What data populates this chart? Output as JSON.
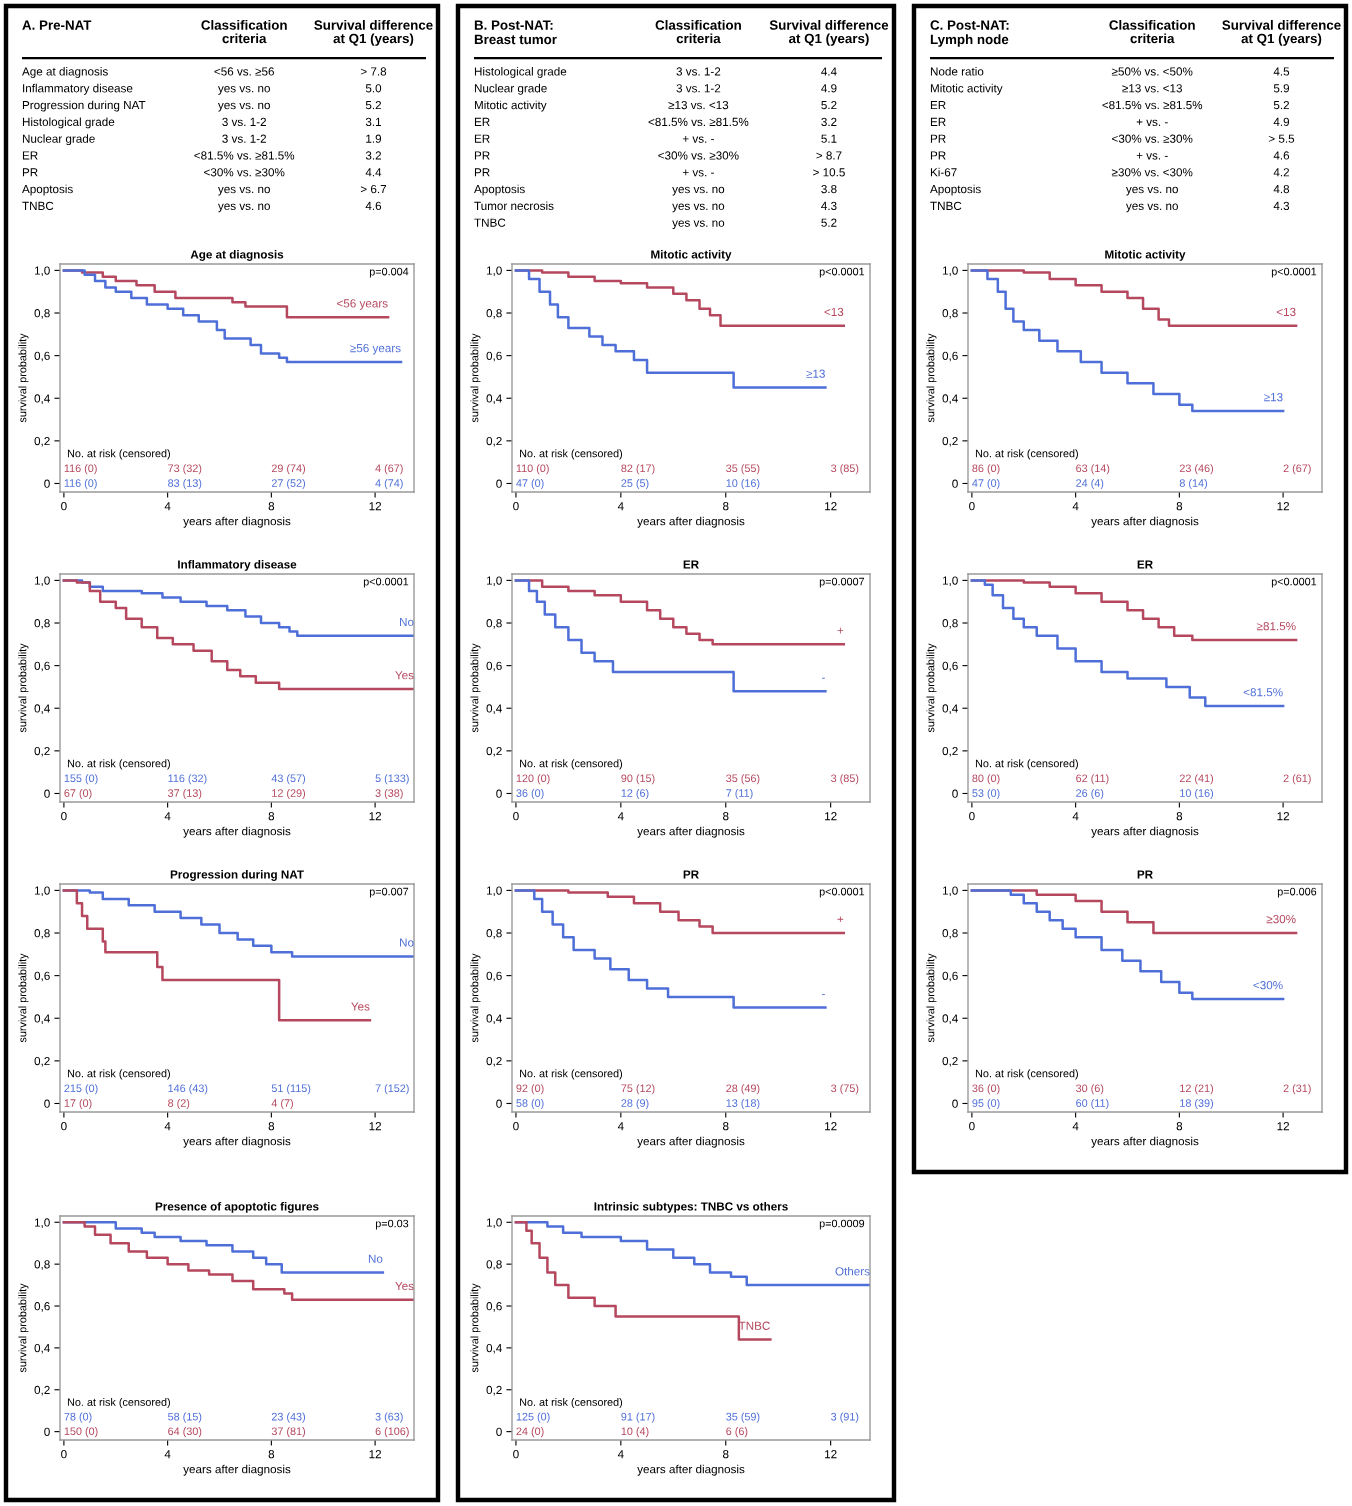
{
  "chart_data": [
    {
      "type": "other",
      "title": "A. Pre-NAT",
      "annotations": [
        "Classification\ncriteria",
        "Survival difference\nat Q1 (years)",
        "Age at diagnosis",
        "<56 vs. ≥56",
        "> 7.8",
        "Inflammatory disease",
        "yes vs. no",
        "5.0",
        "Progression during NAT",
        "yes vs. no",
        "5.2",
        "Histological grade",
        "3 vs. 1-2",
        "3.1",
        "Nuclear grade",
        "3 vs. 1-2",
        "1.9",
        "ER",
        "<81.5% vs. ≥81.5%",
        "3.2",
        "PR",
        "<30% vs. ≥30%",
        "4.4",
        "Apoptosis",
        "yes vs. no",
        "> 6.7",
        "TNBC",
        "yes vs. no",
        "4.6"
      ]
    },
    {
      "type": "step",
      "title": "Age at diagnosis",
      "xlabel": "years after diagnosis",
      "ylabel": "survival probability",
      "xlim": [
        -0.15,
        13.5
      ],
      "ylim": [
        -0.04,
        1.03
      ],
      "xticks": [
        0,
        4,
        8,
        12
      ],
      "yticks": [
        0,
        {
          "value": 0.2,
          "label": "0,2"
        },
        {
          "value": 0.4,
          "label": "0,4"
        },
        {
          "value": 0.6,
          "label": "0,6"
        },
        {
          "value": 0.8,
          "label": "0,8"
        },
        {
          "value": 1,
          "label": "1,0"
        }
      ],
      "series": [
        {
          "name": "<56 years",
          "color": "#b5485e",
          "x": [
            0,
            0.7,
            1.5,
            2,
            2.8,
            3.5,
            4.3,
            6.5,
            7,
            8.6,
            12.5
          ],
          "values": [
            1,
            0.99,
            0.97,
            0.95,
            0.93,
            0.9,
            0.87,
            0.85,
            0.83,
            0.78,
            0.78
          ]
        },
        {
          "name": "≥56 years",
          "color": "#4f6fd8",
          "x": [
            0,
            0.8,
            1.2,
            1.6,
            2,
            2.6,
            3.2,
            4,
            4.6,
            5.2,
            5.9,
            6.2,
            7.2,
            7.6,
            8.3,
            8.6,
            13
          ],
          "values": [
            1,
            0.98,
            0.95,
            0.92,
            0.9,
            0.87,
            0.84,
            0.82,
            0.79,
            0.76,
            0.72,
            0.68,
            0.65,
            0.61,
            0.59,
            0.57,
            0.57
          ]
        }
      ],
      "annotations": [
        "p=0.004",
        "No. at risk (censored)",
        "116 (0)",
        "73 (32)",
        "29 (74)",
        "4 (67)",
        "116 (0)",
        "83 (13)",
        "27 (52)",
        "4 (74)"
      ]
    },
    {
      "type": "step",
      "title": "Inflammatory disease",
      "xlabel": "years after diagnosis",
      "ylabel": "survival probability",
      "xlim": [
        -0.15,
        13.5
      ],
      "ylim": [
        -0.04,
        1.03
      ],
      "xticks": [
        0,
        4,
        8,
        12
      ],
      "yticks": [
        0,
        {
          "value": 0.2,
          "label": "0,2"
        },
        {
          "value": 0.4,
          "label": "0,4"
        },
        {
          "value": 0.6,
          "label": "0,6"
        },
        {
          "value": 0.8,
          "label": "0,8"
        },
        {
          "value": 1,
          "label": "1,0"
        }
      ],
      "series": [
        {
          "name": "No",
          "color": "#4f6fd8",
          "x": [
            0,
            0.7,
            1,
            1.5,
            3,
            3.8,
            4.5,
            5.5,
            6.3,
            7,
            7.6,
            8.3,
            8.7,
            9,
            13.5
          ],
          "values": [
            1,
            0.99,
            0.97,
            0.95,
            0.94,
            0.92,
            0.9,
            0.88,
            0.86,
            0.83,
            0.8,
            0.78,
            0.76,
            0.74,
            0.74
          ]
        },
        {
          "name": "Yes",
          "color": "#b5485e",
          "x": [
            0,
            0.5,
            1,
            1.4,
            2,
            2.4,
            3,
            3.6,
            4.2,
            5,
            5.7,
            6.3,
            6.8,
            7.4,
            8.3,
            13.5
          ],
          "values": [
            1,
            0.99,
            0.95,
            0.9,
            0.87,
            0.82,
            0.78,
            0.73,
            0.7,
            0.67,
            0.62,
            0.58,
            0.55,
            0.52,
            0.49,
            0.49
          ]
        }
      ],
      "annotations": [
        "p<0.0001",
        "No. at risk (censored)",
        "155 (0)",
        "116 (32)",
        "43 (57)",
        "5 (133)",
        "67 (0)",
        "37 (13)",
        "12 (29)",
        "3 (38)"
      ]
    },
    {
      "type": "step",
      "title": "Progression during NAT",
      "xlabel": "years after diagnosis",
      "ylabel": "survival probability",
      "xlim": [
        -0.15,
        13.5
      ],
      "ylim": [
        -0.04,
        1.03
      ],
      "xticks": [
        0,
        4,
        8,
        12
      ],
      "yticks": [
        0,
        {
          "value": 0.2,
          "label": "0,2"
        },
        {
          "value": 0.4,
          "label": "0,4"
        },
        {
          "value": 0.6,
          "label": "0,6"
        },
        {
          "value": 0.8,
          "label": "0,8"
        },
        {
          "value": 1,
          "label": "1,0"
        }
      ],
      "series": [
        {
          "name": "No",
          "color": "#4f6fd8",
          "x": [
            0,
            1,
            1.5,
            2.5,
            3.5,
            4.5,
            5.3,
            6,
            6.7,
            7.3,
            8,
            8.8,
            13.5
          ],
          "values": [
            1,
            0.99,
            0.96,
            0.93,
            0.9,
            0.87,
            0.84,
            0.8,
            0.77,
            0.74,
            0.71,
            0.69,
            0.69
          ]
        },
        {
          "name": "Yes",
          "color": "#b5485e",
          "x": [
            0,
            0.5,
            0.7,
            0.9,
            1.5,
            1.6,
            3.6,
            3.8,
            8.3,
            11.8
          ],
          "values": [
            1,
            0.94,
            0.88,
            0.82,
            0.76,
            0.71,
            0.64,
            0.58,
            0.39,
            0.39
          ]
        }
      ],
      "annotations": [
        "p=0.007",
        "No. at risk (censored)",
        "215 (0)",
        "146 (43)",
        "51 (115)",
        "7 (152)",
        "17 (0)",
        "8 (2)",
        "4 (7)"
      ]
    },
    {
      "type": "step",
      "title": "Presence of apoptotic figures",
      "xlabel": "years after diagnosis",
      "ylabel": "survival probability",
      "xlim": [
        -0.15,
        13.5
      ],
      "ylim": [
        -0.04,
        1.03
      ],
      "xticks": [
        0,
        4,
        8,
        12
      ],
      "yticks": [
        0,
        {
          "value": 0.2,
          "label": "0,2"
        },
        {
          "value": 0.4,
          "label": "0,4"
        },
        {
          "value": 0.6,
          "label": "0,6"
        },
        {
          "value": 0.8,
          "label": "0,8"
        },
        {
          "value": 1,
          "label": "1,0"
        }
      ],
      "series": [
        {
          "name": "No",
          "color": "#4f6fd8",
          "x": [
            0,
            1.5,
            2,
            3,
            3.5,
            4.5,
            5.5,
            6.5,
            7.3,
            7.8,
            8.4,
            12.3
          ],
          "values": [
            1,
            1,
            0.97,
            0.95,
            0.93,
            0.91,
            0.89,
            0.86,
            0.83,
            0.8,
            0.76,
            0.76
          ]
        },
        {
          "name": "Yes",
          "color": "#b5485e",
          "x": [
            0,
            0.8,
            1.2,
            1.8,
            2.5,
            3.2,
            4,
            4.8,
            5.6,
            6.5,
            7.3,
            8.5,
            8.8,
            13.5
          ],
          "values": [
            1,
            0.98,
            0.94,
            0.9,
            0.86,
            0.83,
            0.8,
            0.77,
            0.75,
            0.72,
            0.68,
            0.66,
            0.63,
            0.63
          ]
        }
      ],
      "annotations": [
        "p=0.03",
        "No. at risk (censored)",
        "78 (0)",
        "58 (15)",
        "23 (43)",
        "3 (63)",
        "150 (0)",
        "64 (30)",
        "37 (81)",
        "6 (106)"
      ]
    },
    {
      "type": "other",
      "title": "B. Post-NAT:\nBreast tumor",
      "annotations": [
        "Classification\ncriteria",
        "Survival difference\nat Q1 (years)",
        "Histological grade",
        "3 vs. 1-2",
        "4.4",
        "Nuclear grade",
        "3 vs. 1-2",
        "4.9",
        "Mitotic activity",
        "≥13 vs. <13",
        "5.2",
        "ER",
        "<81.5% vs. ≥81.5%",
        "3.2",
        "ER",
        "+ vs. -",
        "5.1",
        "PR",
        "<30% vs. ≥30%",
        "> 8.7",
        "PR",
        "+ vs. -",
        "> 10.5",
        "Apoptosis",
        "yes vs. no",
        "3.8",
        "Tumor necrosis",
        "yes vs. no",
        "4.3",
        "TNBC",
        "yes vs. no",
        "5.2"
      ]
    },
    {
      "type": "step",
      "title": "Mitotic activity",
      "xlabel": "years after diagnosis",
      "ylabel": "survival probability",
      "xlim": [
        -0.15,
        13.5
      ],
      "ylim": [
        -0.04,
        1.03
      ],
      "xticks": [
        0,
        4,
        8,
        12
      ],
      "yticks": [
        0,
        {
          "value": 0.2,
          "label": "0,2"
        },
        {
          "value": 0.4,
          "label": "0,4"
        },
        {
          "value": 0.6,
          "label": "0,6"
        },
        {
          "value": 0.8,
          "label": "0,8"
        },
        {
          "value": 1,
          "label": "1,0"
        }
      ],
      "series": [
        {
          "name": "<13",
          "color": "#b5485e",
          "x": [
            0,
            1,
            2,
            3,
            4,
            5,
            6,
            6.5,
            7,
            7.4,
            7.8,
            12.5
          ],
          "values": [
            1,
            0.99,
            0.97,
            0.95,
            0.94,
            0.92,
            0.89,
            0.86,
            0.82,
            0.79,
            0.74,
            0.74
          ]
        },
        {
          "name": "≥13",
          "color": "#4f6fd8",
          "x": [
            0,
            0.5,
            0.9,
            1.3,
            1.6,
            2,
            2.8,
            3.3,
            3.8,
            4.5,
            5,
            8.3,
            11.8
          ],
          "values": [
            1,
            0.96,
            0.9,
            0.84,
            0.78,
            0.73,
            0.69,
            0.65,
            0.62,
            0.58,
            0.52,
            0.45,
            0.45
          ]
        }
      ],
      "annotations": [
        "p<0.0001",
        "No. at risk (censored)",
        "110 (0)",
        "82 (17)",
        "35 (55)",
        "3 (85)",
        "47 (0)",
        "25 (5)",
        "10 (16)"
      ]
    },
    {
      "type": "step",
      "title": "ER",
      "xlabel": "years after diagnosis",
      "ylabel": "survival probability",
      "xlim": [
        -0.15,
        13.5
      ],
      "ylim": [
        -0.04,
        1.03
      ],
      "xticks": [
        0,
        4,
        8,
        12
      ],
      "yticks": [
        0,
        {
          "value": 0.2,
          "label": "0,2"
        },
        {
          "value": 0.4,
          "label": "0,4"
        },
        {
          "value": 0.6,
          "label": "0,6"
        },
        {
          "value": 0.8,
          "label": "0,8"
        },
        {
          "value": 1,
          "label": "1,0"
        }
      ],
      "series": [
        {
          "name": "+",
          "color": "#b5485e",
          "x": [
            0,
            1,
            2,
            3,
            4,
            5,
            5.5,
            6,
            6.5,
            7,
            7.5,
            12.5
          ],
          "values": [
            1,
            0.97,
            0.95,
            0.93,
            0.9,
            0.86,
            0.82,
            0.78,
            0.75,
            0.72,
            0.7,
            0.7
          ]
        },
        {
          "name": "-",
          "color": "#4f6fd8",
          "x": [
            0,
            0.5,
            0.8,
            1.1,
            1.5,
            2,
            2.5,
            3,
            3.7,
            8.3,
            11.8
          ],
          "values": [
            1,
            0.95,
            0.9,
            0.84,
            0.78,
            0.72,
            0.66,
            0.62,
            0.57,
            0.48,
            0.48
          ]
        }
      ],
      "annotations": [
        "p=0.0007",
        "No. at risk (censored)",
        "120 (0)",
        "90 (15)",
        "35 (56)",
        "3 (85)",
        "36 (0)",
        "12 (6)",
        "7 (11)"
      ]
    },
    {
      "type": "step",
      "title": "PR",
      "xlabel": "years after diagnosis",
      "ylabel": "survival probability",
      "xlim": [
        -0.15,
        13.5
      ],
      "ylim": [
        -0.04,
        1.03
      ],
      "xticks": [
        0,
        4,
        8,
        12
      ],
      "yticks": [
        0,
        {
          "value": 0.2,
          "label": "0,2"
        },
        {
          "value": 0.4,
          "label": "0,4"
        },
        {
          "value": 0.6,
          "label": "0,6"
        },
        {
          "value": 0.8,
          "label": "0,8"
        },
        {
          "value": 1,
          "label": "1,0"
        }
      ],
      "series": [
        {
          "name": "+",
          "color": "#b5485e",
          "x": [
            0,
            2,
            3.5,
            4.5,
            5.5,
            6.2,
            7,
            7.5,
            12.5
          ],
          "values": [
            1,
            0.99,
            0.97,
            0.94,
            0.9,
            0.86,
            0.83,
            0.8,
            0.8
          ]
        },
        {
          "name": "-",
          "color": "#4f6fd8",
          "x": [
            0,
            0.7,
            1,
            1.4,
            1.8,
            2.2,
            3,
            3.6,
            4.3,
            5,
            5.8,
            8.3,
            11.8
          ],
          "values": [
            1,
            0.96,
            0.9,
            0.84,
            0.78,
            0.72,
            0.68,
            0.63,
            0.58,
            0.54,
            0.5,
            0.45,
            0.45
          ]
        }
      ],
      "annotations": [
        "p<0.0001",
        "No. at risk (censored)",
        "92 (0)",
        "75 (12)",
        "28 (49)",
        "3 (75)",
        "58 (0)",
        "28 (9)",
        "13 (18)"
      ]
    },
    {
      "type": "step",
      "title": "Intrinsic subtypes: TNBC vs others",
      "xlabel": "years after diagnosis",
      "ylabel": "survival probability",
      "xlim": [
        -0.15,
        13.5
      ],
      "ylim": [
        -0.04,
        1.03
      ],
      "xticks": [
        0,
        4,
        8,
        12
      ],
      "yticks": [
        0,
        {
          "value": 0.2,
          "label": "0,2"
        },
        {
          "value": 0.4,
          "label": "0,4"
        },
        {
          "value": 0.6,
          "label": "0,6"
        },
        {
          "value": 0.8,
          "label": "0,8"
        },
        {
          "value": 1,
          "label": "1,0"
        }
      ],
      "series": [
        {
          "name": "Others",
          "color": "#4f6fd8",
          "x": [
            0,
            1.2,
            1.8,
            2.5,
            4,
            5,
            6,
            6.8,
            7.4,
            8.2,
            8.8,
            13.5
          ],
          "values": [
            1,
            0.98,
            0.95,
            0.93,
            0.91,
            0.87,
            0.83,
            0.8,
            0.76,
            0.74,
            0.7,
            0.7
          ]
        },
        {
          "name": "TNBC",
          "color": "#b5485e",
          "x": [
            0,
            0.4,
            0.6,
            0.9,
            1.2,
            1.5,
            2,
            3,
            3.8,
            8.5,
            9.7
          ],
          "values": [
            1,
            0.96,
            0.9,
            0.83,
            0.76,
            0.7,
            0.64,
            0.6,
            0.55,
            0.44,
            0.44
          ]
        }
      ],
      "annotations": [
        "p=0.0009",
        "No. at risk (censored)",
        "125 (0)",
        "91 (17)",
        "35 (59)",
        "3 (91)",
        "24 (0)",
        "10 (4)",
        "6 (6)"
      ]
    },
    {
      "type": "other",
      "title": "C. Post-NAT:\nLymph node",
      "annotations": [
        "Classification\ncriteria",
        "Survival difference\nat Q1 (years)",
        "Node ratio",
        "≥50% vs. <50%",
        "4.5",
        "Mitotic activity",
        "≥13 vs. <13",
        "5.9",
        "ER",
        "<81.5% vs. ≥81.5%",
        "5.2",
        "ER",
        "+ vs. -",
        "4.9",
        "PR",
        "<30% vs. ≥30%",
        "> 5.5",
        "PR",
        "+ vs. -",
        "4.6",
        "Ki-67",
        "≥30% vs. <30%",
        "4.2",
        "Apoptosis",
        "yes vs. no",
        "4.8",
        "TNBC",
        "yes vs. no",
        "4.3"
      ]
    },
    {
      "type": "step",
      "title": "Mitotic activity",
      "xlabel": "years after diagnosis",
      "ylabel": "survival probability",
      "xlim": [
        -0.15,
        13.5
      ],
      "ylim": [
        -0.04,
        1.03
      ],
      "xticks": [
        0,
        4,
        8,
        12
      ],
      "yticks": [
        0,
        {
          "value": 0.2,
          "label": "0,2"
        },
        {
          "value": 0.4,
          "label": "0,4"
        },
        {
          "value": 0.6,
          "label": "0,6"
        },
        {
          "value": 0.8,
          "label": "0,8"
        },
        {
          "value": 1,
          "label": "1,0"
        }
      ],
      "series": [
        {
          "name": "<13",
          "color": "#b5485e",
          "x": [
            0,
            2,
            3,
            4,
            5,
            6,
            6.6,
            7.2,
            7.6,
            12.5
          ],
          "values": [
            1,
            0.99,
            0.96,
            0.93,
            0.9,
            0.87,
            0.82,
            0.77,
            0.74,
            0.74
          ]
        },
        {
          "name": "≥13",
          "color": "#4f6fd8",
          "x": [
            0,
            0.6,
            1,
            1.3,
            1.6,
            2,
            2.6,
            3.3,
            4.2,
            5,
            6,
            7,
            8,
            8.5,
            12
          ],
          "values": [
            1,
            0.96,
            0.9,
            0.82,
            0.76,
            0.72,
            0.67,
            0.62,
            0.57,
            0.52,
            0.47,
            0.42,
            0.37,
            0.34,
            0.34
          ]
        }
      ],
      "annotations": [
        "p<0.0001",
        "No. at risk (censored)",
        "86 (0)",
        "63 (14)",
        "23 (46)",
        "2 (67)",
        "47 (0)",
        "24 (4)",
        "8 (14)"
      ]
    },
    {
      "type": "step",
      "title": "ER",
      "xlabel": "years after diagnosis",
      "ylabel": "survival probability",
      "xlim": [
        -0.15,
        13.5
      ],
      "ylim": [
        -0.04,
        1.03
      ],
      "xticks": [
        0,
        4,
        8,
        12
      ],
      "yticks": [
        0,
        {
          "value": 0.2,
          "label": "0,2"
        },
        {
          "value": 0.4,
          "label": "0,4"
        },
        {
          "value": 0.6,
          "label": "0,6"
        },
        {
          "value": 0.8,
          "label": "0,8"
        },
        {
          "value": 1,
          "label": "1,0"
        }
      ],
      "series": [
        {
          "name": "≥81.5%",
          "color": "#b5485e",
          "x": [
            0,
            2,
            3,
            4,
            5,
            6,
            6.6,
            7.2,
            7.8,
            8.5,
            12.5
          ],
          "values": [
            1,
            0.99,
            0.97,
            0.94,
            0.9,
            0.86,
            0.82,
            0.78,
            0.74,
            0.72,
            0.72
          ]
        },
        {
          "name": "<81.5%",
          "color": "#4f6fd8",
          "x": [
            0,
            0.5,
            0.8,
            1.2,
            1.6,
            2,
            2.5,
            3.3,
            4,
            5,
            6,
            7.5,
            8.4,
            9,
            12
          ],
          "values": [
            1,
            0.98,
            0.93,
            0.87,
            0.82,
            0.78,
            0.74,
            0.68,
            0.62,
            0.57,
            0.54,
            0.5,
            0.45,
            0.41,
            0.41
          ]
        }
      ],
      "annotations": [
        "p<0.0001",
        "No. at risk (censored)",
        "80 (0)",
        "62 (11)",
        "22 (41)",
        "2 (61)",
        "53 (0)",
        "26 (6)",
        "10 (16)"
      ]
    },
    {
      "type": "step",
      "title": "PR",
      "xlabel": "years after diagnosis",
      "ylabel": "survival probability",
      "xlim": [
        -0.15,
        13.5
      ],
      "ylim": [
        -0.04,
        1.03
      ],
      "xticks": [
        0,
        4,
        8,
        12
      ],
      "yticks": [
        0,
        {
          "value": 0.2,
          "label": "0,2"
        },
        {
          "value": 0.4,
          "label": "0,4"
        },
        {
          "value": 0.6,
          "label": "0,6"
        },
        {
          "value": 0.8,
          "label": "0,8"
        },
        {
          "value": 1,
          "label": "1,0"
        }
      ],
      "series": [
        {
          "name": "≥30%",
          "color": "#b5485e",
          "x": [
            0,
            2.5,
            4,
            5,
            6,
            7,
            12.5
          ],
          "values": [
            1,
            0.98,
            0.95,
            0.9,
            0.85,
            0.8,
            0.8
          ]
        },
        {
          "name": "<30%",
          "color": "#4f6fd8",
          "x": [
            0,
            1.5,
            2,
            2.5,
            3,
            3.5,
            4,
            5,
            5.8,
            6.5,
            7.3,
            8,
            8.5,
            12
          ],
          "values": [
            1,
            0.98,
            0.94,
            0.9,
            0.86,
            0.82,
            0.78,
            0.72,
            0.67,
            0.62,
            0.57,
            0.52,
            0.49,
            0.49
          ]
        }
      ],
      "annotations": [
        "p=0.006",
        "No. at risk (censored)",
        "36 (0)",
        "30 (6)",
        "12 (21)",
        "2 (31)",
        "95 (0)",
        "60 (11)",
        "18 (39)"
      ]
    }
  ]
}
